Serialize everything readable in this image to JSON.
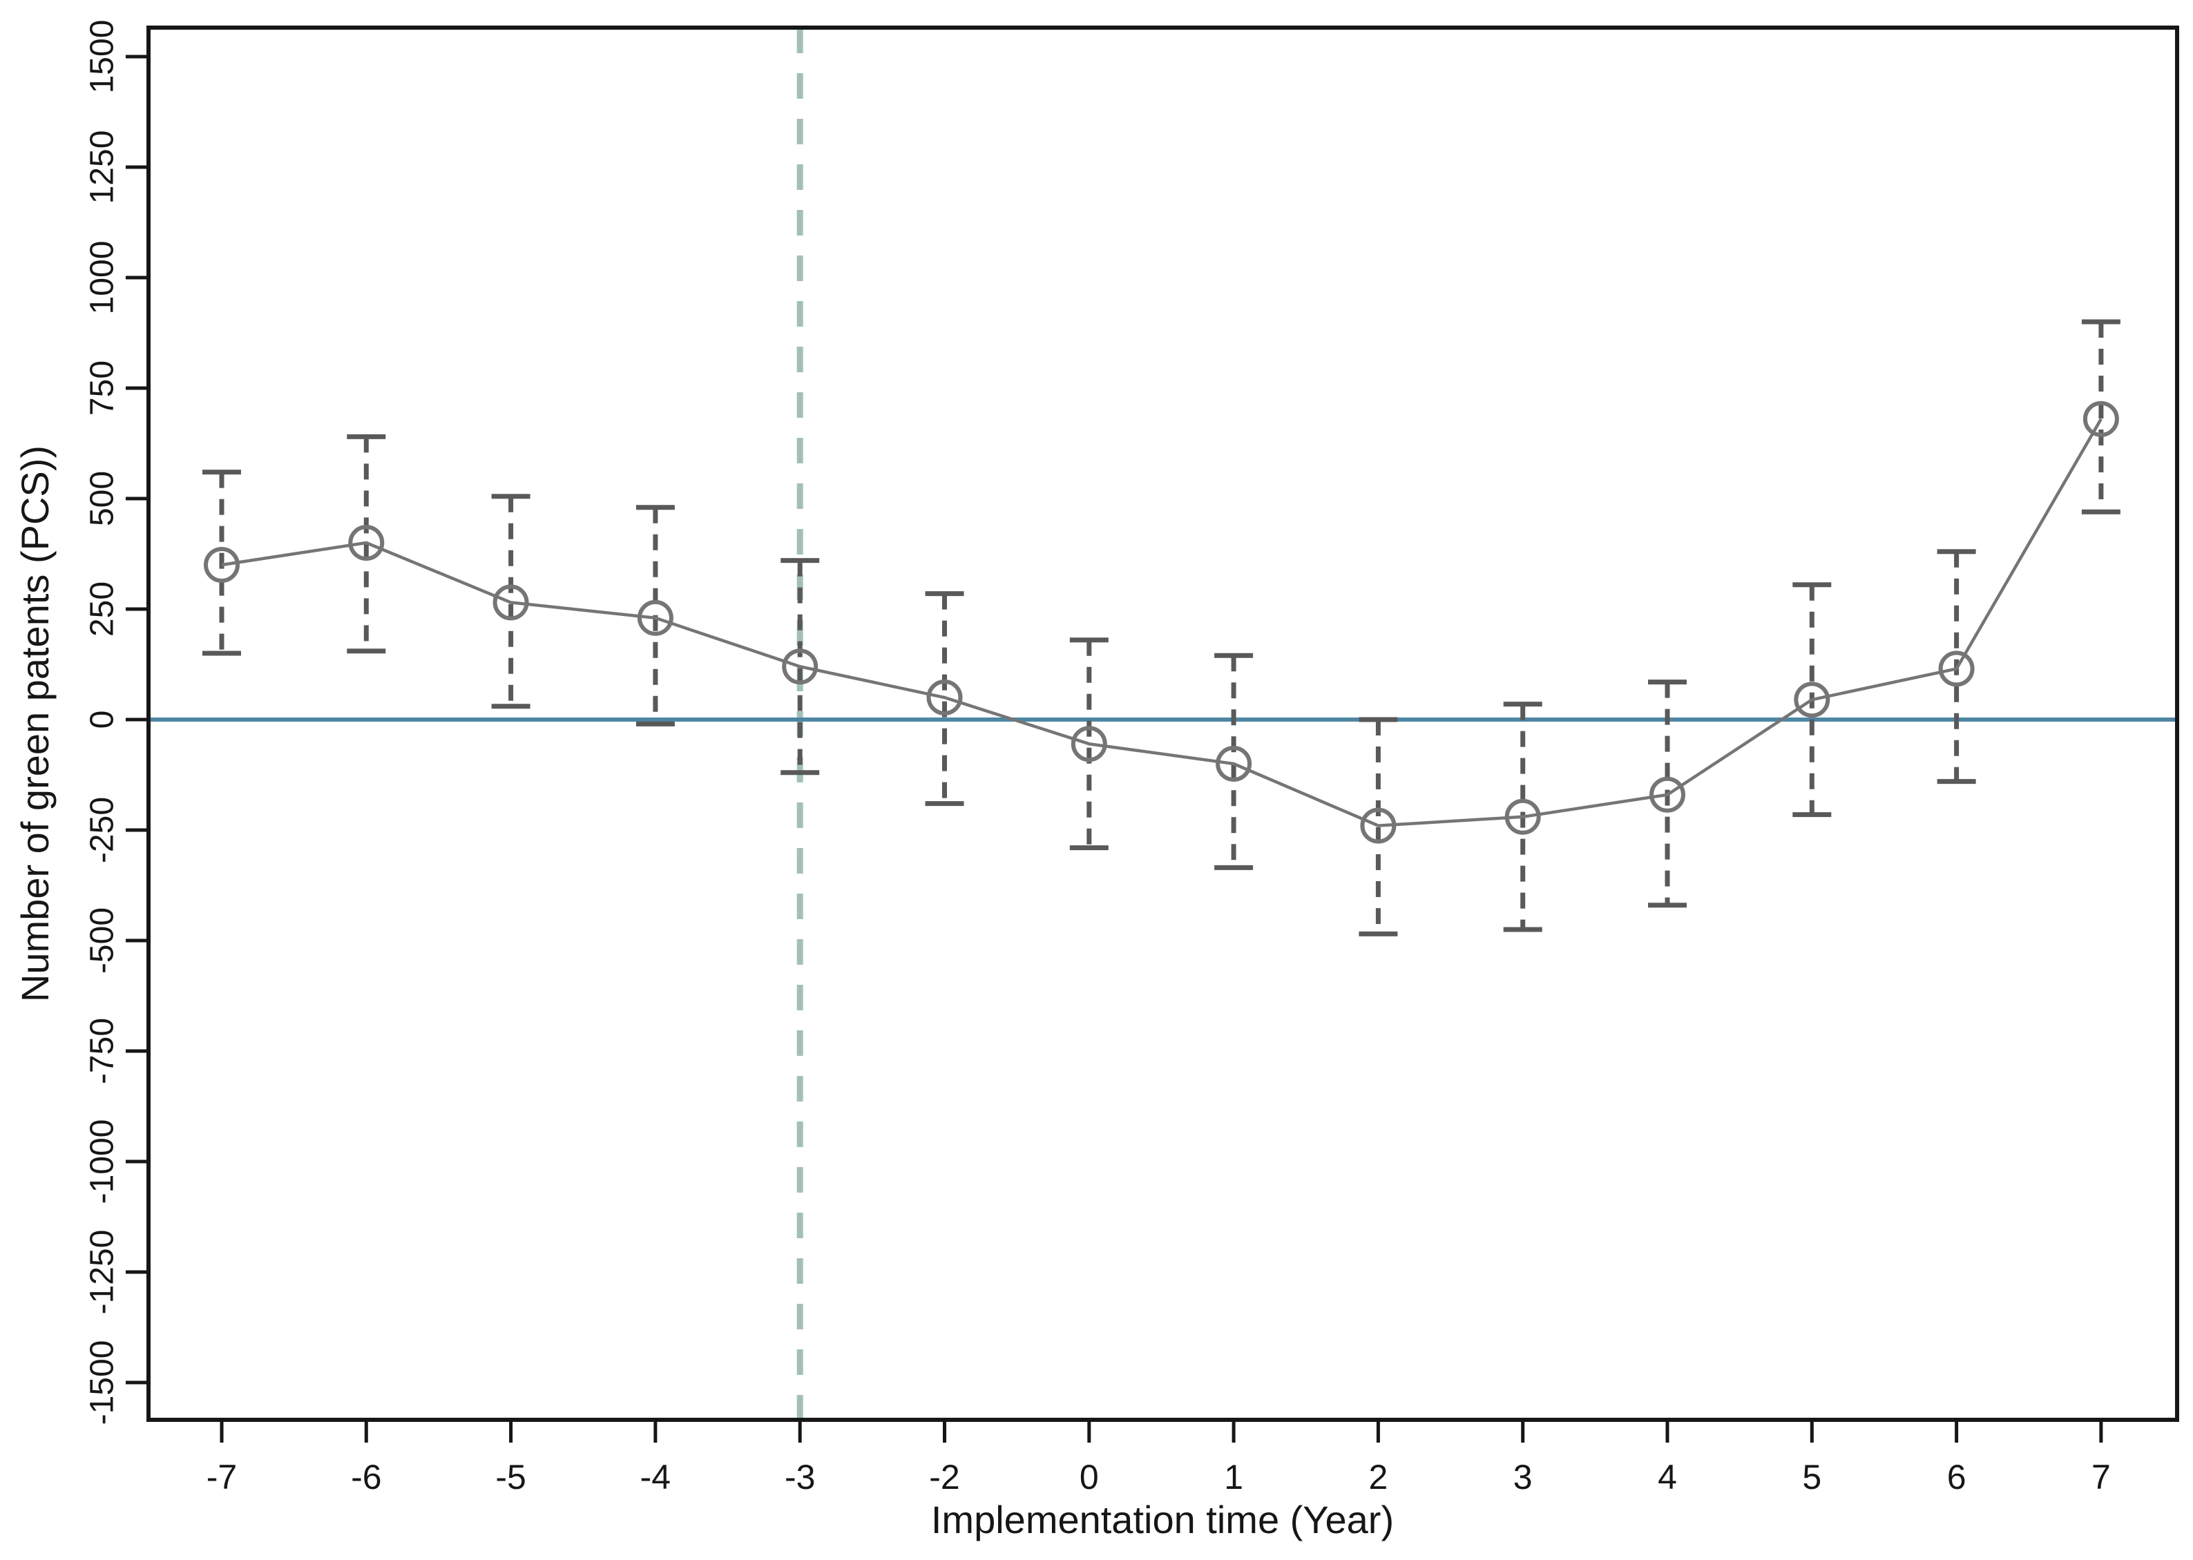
{
  "figure": {
    "background": "#ffffff"
  },
  "chart_data": {
    "type": "line",
    "subtype": "event-study-coefficients-with-confidence-intervals",
    "title": "",
    "xlabel": "Implementation time (Year)",
    "ylabel": "Number of green patents (PCS))",
    "categories": [
      "-7",
      "-6",
      "-5",
      "-4",
      "-3",
      "-2",
      "0",
      "1",
      "2",
      "3",
      "4",
      "5",
      "6",
      "7"
    ],
    "omitted_period": "-1",
    "series": [
      {
        "name": "coefficient",
        "values": [
          350,
          400,
          265,
          230,
          120,
          50,
          -55,
          -100,
          -240,
          -220,
          -170,
          45,
          115,
          680
        ]
      },
      {
        "name": "ci_lower",
        "values": [
          150,
          155,
          30,
          -10,
          -120,
          -190,
          -290,
          -335,
          -485,
          -475,
          -420,
          -215,
          -140,
          470
        ]
      },
      {
        "name": "ci_upper",
        "values": [
          560,
          640,
          505,
          480,
          360,
          285,
          180,
          145,
          0,
          35,
          85,
          305,
          380,
          900
        ]
      }
    ],
    "y_ticks": [
      1500,
      1250,
      1000,
      750,
      500,
      250,
      0,
      -250,
      -500,
      -750,
      -1000,
      -1250,
      -1500
    ],
    "ylim": [
      -1585,
      1565
    ],
    "grid": false,
    "legend": null,
    "reference_lines": {
      "horizontal_zero_line_y": 0,
      "vertical_event_line_x": "-3"
    },
    "colors": {
      "zero_line": "#4e86a4",
      "event_line": "#a2c0b9",
      "marker_line": "#757575",
      "error_bar": "#595959",
      "axis": "#161616"
    },
    "marker_style": "open-circle"
  }
}
